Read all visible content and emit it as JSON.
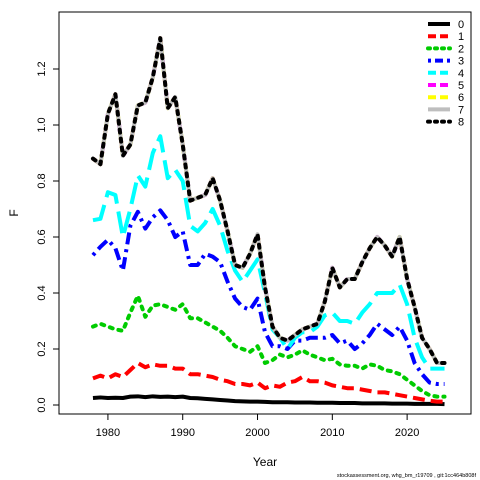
{
  "chart_data": {
    "type": "line",
    "title": "",
    "xlabel": "Year",
    "ylabel": "F",
    "xlim": [
      1976,
      2026
    ],
    "ylim": [
      0,
      1.35
    ],
    "x_ticks": [
      1980,
      1990,
      2000,
      2010,
      2020
    ],
    "y_ticks": [
      0.0,
      0.2,
      0.4,
      0.6,
      0.8,
      1.0,
      1.2
    ],
    "y_tick_labels": [
      "0.0",
      "0.2",
      "0.4",
      "0.6",
      "0.8",
      "1.0",
      "1.2"
    ],
    "grid": false,
    "legend_position": "top-right",
    "x": [
      1978,
      1979,
      1980,
      1981,
      1982,
      1983,
      1984,
      1985,
      1986,
      1987,
      1988,
      1989,
      1990,
      1991,
      1992,
      1993,
      1994,
      1995,
      1996,
      1997,
      1998,
      1999,
      2000,
      2001,
      2002,
      2003,
      2004,
      2005,
      2006,
      2007,
      2008,
      2009,
      2010,
      2011,
      2012,
      2013,
      2014,
      2015,
      2016,
      2017,
      2018,
      2019,
      2020,
      2021,
      2022,
      2023,
      2024,
      2025
    ],
    "series": [
      {
        "name": "0",
        "color": "#000000",
        "dash": "solid",
        "values": [
          0.025,
          0.027,
          0.025,
          0.026,
          0.025,
          0.03,
          0.031,
          0.028,
          0.031,
          0.029,
          0.03,
          0.028,
          0.03,
          0.025,
          0.024,
          0.022,
          0.02,
          0.018,
          0.016,
          0.014,
          0.013,
          0.012,
          0.012,
          0.011,
          0.01,
          0.01,
          0.01,
          0.009,
          0.009,
          0.009,
          0.008,
          0.008,
          0.008,
          0.007,
          0.007,
          0.007,
          0.006,
          0.006,
          0.006,
          0.006,
          0.005,
          0.005,
          0.005,
          0.004,
          0.004,
          0.004,
          0.004,
          0.003
        ]
      },
      {
        "name": "1",
        "color": "#ff0000",
        "dash": "dashed",
        "values": [
          0.095,
          0.105,
          0.095,
          0.11,
          0.1,
          0.125,
          0.15,
          0.135,
          0.145,
          0.14,
          0.14,
          0.13,
          0.13,
          0.11,
          0.11,
          0.105,
          0.1,
          0.09,
          0.085,
          0.075,
          0.075,
          0.07,
          0.08,
          0.06,
          0.07,
          0.065,
          0.08,
          0.085,
          0.1,
          0.085,
          0.085,
          0.08,
          0.07,
          0.065,
          0.06,
          0.06,
          0.055,
          0.05,
          0.045,
          0.045,
          0.04,
          0.035,
          0.03,
          0.025,
          0.02,
          0.015,
          0.012,
          0.012
        ]
      },
      {
        "name": "2",
        "color": "#00cc00",
        "dash": "dotted",
        "values": [
          0.28,
          0.29,
          0.28,
          0.27,
          0.265,
          0.33,
          0.39,
          0.315,
          0.355,
          0.36,
          0.35,
          0.34,
          0.36,
          0.31,
          0.31,
          0.295,
          0.28,
          0.265,
          0.24,
          0.21,
          0.2,
          0.19,
          0.21,
          0.15,
          0.16,
          0.18,
          0.17,
          0.18,
          0.195,
          0.18,
          0.17,
          0.16,
          0.165,
          0.145,
          0.14,
          0.14,
          0.13,
          0.145,
          0.14,
          0.125,
          0.12,
          0.11,
          0.09,
          0.07,
          0.05,
          0.035,
          0.03,
          0.03
        ]
      },
      {
        "name": "3",
        "color": "#0000ff",
        "dash": "dashdot",
        "values": [
          0.535,
          0.565,
          0.59,
          0.56,
          0.48,
          0.64,
          0.69,
          0.63,
          0.67,
          0.695,
          0.66,
          0.6,
          0.62,
          0.5,
          0.5,
          0.54,
          0.53,
          0.51,
          0.44,
          0.38,
          0.35,
          0.34,
          0.38,
          0.26,
          0.21,
          0.21,
          0.2,
          0.23,
          0.23,
          0.24,
          0.24,
          0.24,
          0.25,
          0.22,
          0.23,
          0.2,
          0.22,
          0.25,
          0.29,
          0.27,
          0.25,
          0.28,
          0.23,
          0.15,
          0.11,
          0.08,
          0.075,
          0.075
        ]
      },
      {
        "name": "4",
        "color": "#00ffff",
        "dash": "longdash",
        "values": [
          0.66,
          0.665,
          0.76,
          0.75,
          0.6,
          0.7,
          0.82,
          0.78,
          0.9,
          0.96,
          0.81,
          0.84,
          0.8,
          0.64,
          0.62,
          0.65,
          0.7,
          0.64,
          0.55,
          0.48,
          0.44,
          0.48,
          0.52,
          0.4,
          0.27,
          0.24,
          0.2,
          0.24,
          0.26,
          0.26,
          0.28,
          0.32,
          0.33,
          0.3,
          0.3,
          0.29,
          0.33,
          0.36,
          0.4,
          0.4,
          0.4,
          0.43,
          0.36,
          0.24,
          0.17,
          0.13,
          0.13,
          0.13
        ]
      },
      {
        "name": "5",
        "color": "#ff00ff",
        "dash": "dashed",
        "values": [
          0.88,
          0.86,
          1.04,
          1.11,
          0.89,
          0.93,
          1.07,
          1.08,
          1.17,
          1.31,
          1.06,
          1.1,
          0.93,
          0.73,
          0.74,
          0.75,
          0.81,
          0.73,
          0.62,
          0.5,
          0.49,
          0.54,
          0.61,
          0.42,
          0.28,
          0.24,
          0.23,
          0.25,
          0.27,
          0.28,
          0.29,
          0.37,
          0.49,
          0.42,
          0.45,
          0.45,
          0.51,
          0.56,
          0.6,
          0.57,
          0.53,
          0.6,
          0.45,
          0.35,
          0.24,
          0.2,
          0.15,
          0.15
        ]
      },
      {
        "name": "6",
        "color": "#ffff00",
        "dash": "longdash",
        "values": [
          0.88,
          0.86,
          1.04,
          1.11,
          0.89,
          0.93,
          1.07,
          1.08,
          1.17,
          1.31,
          1.06,
          1.1,
          0.93,
          0.73,
          0.74,
          0.75,
          0.81,
          0.73,
          0.62,
          0.5,
          0.49,
          0.54,
          0.61,
          0.42,
          0.28,
          0.24,
          0.23,
          0.25,
          0.27,
          0.28,
          0.29,
          0.37,
          0.49,
          0.42,
          0.45,
          0.45,
          0.51,
          0.56,
          0.6,
          0.57,
          0.53,
          0.6,
          0.45,
          0.35,
          0.24,
          0.2,
          0.15,
          0.15
        ]
      },
      {
        "name": "7",
        "color": "#bebebe",
        "dash": "solid",
        "values": [
          0.88,
          0.86,
          1.04,
          1.11,
          0.89,
          0.93,
          1.07,
          1.08,
          1.17,
          1.31,
          1.06,
          1.1,
          0.93,
          0.73,
          0.74,
          0.75,
          0.81,
          0.73,
          0.62,
          0.5,
          0.49,
          0.54,
          0.61,
          0.42,
          0.28,
          0.24,
          0.23,
          0.25,
          0.27,
          0.28,
          0.29,
          0.37,
          0.49,
          0.42,
          0.45,
          0.45,
          0.51,
          0.56,
          0.6,
          0.57,
          0.53,
          0.6,
          0.45,
          0.35,
          0.24,
          0.2,
          0.15,
          0.15
        ]
      },
      {
        "name": "8",
        "color": "#000000",
        "dash": "dotted",
        "values": [
          0.88,
          0.86,
          1.04,
          1.11,
          0.89,
          0.93,
          1.07,
          1.08,
          1.17,
          1.31,
          1.06,
          1.1,
          0.93,
          0.73,
          0.74,
          0.75,
          0.81,
          0.73,
          0.62,
          0.5,
          0.49,
          0.54,
          0.61,
          0.42,
          0.28,
          0.24,
          0.23,
          0.25,
          0.27,
          0.28,
          0.29,
          0.37,
          0.49,
          0.42,
          0.45,
          0.45,
          0.51,
          0.56,
          0.6,
          0.57,
          0.53,
          0.6,
          0.45,
          0.35,
          0.24,
          0.2,
          0.15,
          0.15
        ]
      }
    ],
    "footnote": "stockassessment.org, whg_bm_r19709 , git:1cc464b808f"
  }
}
